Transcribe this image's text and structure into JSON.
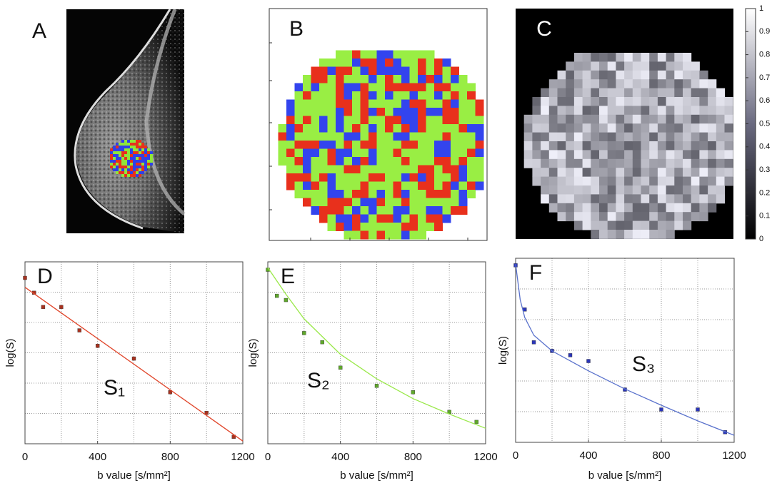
{
  "panels": [
    {
      "letter": "A"
    },
    {
      "letter": "B"
    },
    {
      "letter": "C",
      "colorbar": {
        "lim": [
          0,
          1
        ],
        "ticks": [
          0,
          0.1,
          0.2,
          0.3,
          0.4,
          0.5,
          0.6,
          0.7,
          0.8,
          0.9,
          1
        ]
      }
    }
  ],
  "chart_data": [
    {
      "type": "scatter",
      "letter": "D",
      "curve_label": "S₁",
      "xlabel": "b value [s/mm²]",
      "ylabel": "log(S)",
      "xlim": [
        0,
        1200
      ],
      "xticks": [
        0,
        400,
        800,
        1200
      ],
      "xgrid": [
        200,
        400,
        600,
        800,
        1000
      ],
      "ylim": [
        0,
        6
      ],
      "ygrid": [
        1,
        2,
        3,
        4,
        5
      ],
      "series": [
        {
          "color": "#a8321f",
          "x": [
            0,
            50,
            100,
            200,
            300,
            400,
            600,
            800,
            1000,
            1150
          ],
          "values": [
            5.47,
            4.98,
            4.51,
            4.51,
            3.74,
            3.23,
            2.81,
            1.7,
            1.02,
            0.23
          ]
        },
        {
          "kind": "fit",
          "color": "#e0452a",
          "x": [
            0,
            1200
          ],
          "values": [
            5.16,
            0.09
          ]
        }
      ]
    },
    {
      "type": "scatter",
      "letter": "E",
      "curve_label": "S₂",
      "xlabel": "b value [s/mm²]",
      "ylabel": "log(S)",
      "xlim": [
        0,
        1200
      ],
      "xticks": [
        0,
        400,
        800,
        1200
      ],
      "xgrid": [
        200,
        400,
        600,
        800,
        1000
      ],
      "ylim": [
        0,
        6
      ],
      "ygrid": [
        1,
        2,
        3,
        4,
        5
      ],
      "series": [
        {
          "color": "#5fa82a",
          "x": [
            0,
            50,
            100,
            200,
            300,
            400,
            600,
            800,
            1000,
            1150
          ],
          "values": [
            5.74,
            4.88,
            4.74,
            3.65,
            3.35,
            2.51,
            1.91,
            1.7,
            1.05,
            0.72
          ]
        },
        {
          "kind": "fit",
          "color": "#9ae84a",
          "x": [
            0,
            100,
            200,
            400,
            600,
            800,
            1000,
            1200
          ],
          "values": [
            5.81,
            4.93,
            4.12,
            2.95,
            2.14,
            1.49,
            0.98,
            0.51
          ]
        }
      ]
    },
    {
      "type": "scatter",
      "letter": "F",
      "curve_label": "S₃",
      "xlabel": "b value [s/mm²]",
      "ylabel": "log(S)",
      "xlim": [
        0,
        1200
      ],
      "xticks": [
        0,
        400,
        800,
        1200
      ],
      "xgrid": [
        200,
        400,
        600,
        800,
        1000
      ],
      "ylim": [
        0,
        6
      ],
      "ygrid": [
        1,
        2,
        3,
        4,
        5
      ],
      "series": [
        {
          "color": "#2a35b8",
          "x": [
            0,
            50,
            100,
            200,
            300,
            400,
            600,
            800,
            1000,
            1150
          ],
          "values": [
            5.77,
            4.33,
            3.26,
            2.98,
            2.84,
            2.65,
            1.72,
            1.07,
            1.07,
            0.33
          ]
        },
        {
          "kind": "fit",
          "color": "#5a72cc",
          "x": [
            0,
            25,
            50,
            100,
            200,
            400,
            600,
            800,
            1000,
            1200
          ],
          "values": [
            5.81,
            4.65,
            4.07,
            3.49,
            2.98,
            2.33,
            1.74,
            1.21,
            0.7,
            0.23
          ]
        }
      ]
    }
  ]
}
